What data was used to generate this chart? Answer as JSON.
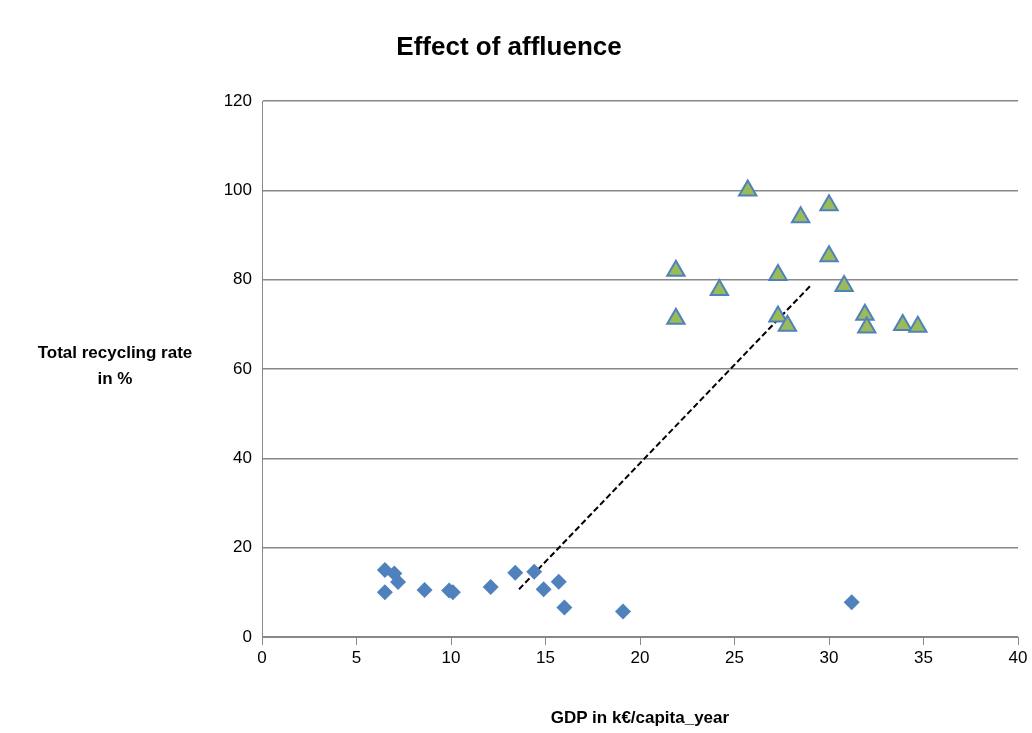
{
  "chart_data": {
    "type": "scatter",
    "title": "Effect of affluence",
    "xlabel": "GDP in k€/capita_year",
    "ylabel": "Total recycling rate in %",
    "xlim": [
      0,
      40
    ],
    "xticks": [
      0,
      5,
      10,
      15,
      20,
      25,
      30,
      35,
      40
    ],
    "ylim": [
      0,
      120
    ],
    "yticks": [
      0,
      20,
      40,
      60,
      80,
      100,
      120
    ],
    "grid": "y",
    "legend": false,
    "series": [
      {
        "color": "#4f81bd",
        "marker": "diamond",
        "x": [
          6.5,
          6.5,
          7,
          7.2,
          8.6,
          9.9,
          10.1,
          12.1,
          13.4,
          14.4,
          14.9,
          15.7,
          16,
          19.1,
          31.2
        ],
        "values": [
          15,
          10,
          14.2,
          12.3,
          10.5,
          10.4,
          10,
          11.2,
          14.4,
          14.6,
          10.7,
          12.4,
          6.6,
          5.7,
          7.8
        ]
      },
      {
        "color": "#9bbb59",
        "marker": "triangle",
        "x": [
          21.9,
          21.9,
          24.2,
          25.7,
          27.3,
          27.3,
          27.8,
          28.5,
          30,
          30,
          30.8,
          31.9,
          32,
          33.9,
          34.7
        ],
        "values": [
          82,
          71.3,
          77.7,
          100,
          81.1,
          71.8,
          69.7,
          94,
          96.7,
          85.3,
          78.6,
          72.2,
          69.3,
          69.9,
          69.5
        ]
      },
      {
        "type": "line",
        "color": "#000000",
        "marker": "none",
        "line_style": "dashed",
        "x": [
          13.6,
          29
        ],
        "values": [
          10.7,
          78.6
        ]
      }
    ]
  }
}
